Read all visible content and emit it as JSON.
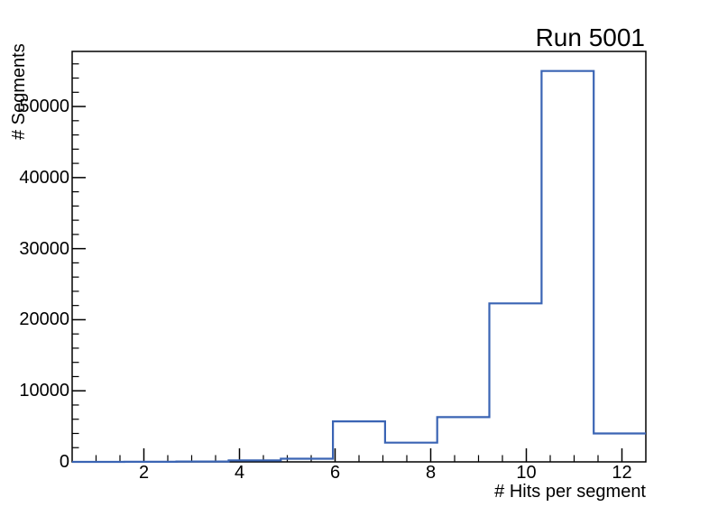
{
  "chart_data": {
    "type": "step-histogram",
    "title": "Run 5001",
    "xlabel": "# Hits per segment",
    "ylabel": "# Segments",
    "xlim": [
      0.5,
      12.5
    ],
    "ylim": [
      0,
      57750
    ],
    "grid": false,
    "legend": "none",
    "bin_edges": [
      0.5,
      1.5909,
      2.6818,
      3.7727,
      4.8636,
      5.9545,
      7.0455,
      8.1364,
      9.2273,
      10.3182,
      11.4091,
      12.5
    ],
    "values": [
      0,
      10,
      50,
      200,
      450,
      5700,
      2700,
      6300,
      22300,
      55000,
      4000
    ],
    "x_ticks": [
      {
        "v": 2,
        "label": "2"
      },
      {
        "v": 4,
        "label": "4"
      },
      {
        "v": 6,
        "label": "6"
      },
      {
        "v": 8,
        "label": "8"
      },
      {
        "v": 10,
        "label": "10"
      },
      {
        "v": 12,
        "label": "12"
      }
    ],
    "y_ticks": [
      {
        "v": 0,
        "label": "0"
      },
      {
        "v": 10000,
        "label": "10000"
      },
      {
        "v": 20000,
        "label": "20000"
      },
      {
        "v": 30000,
        "label": "30000"
      },
      {
        "v": 40000,
        "label": "40000"
      },
      {
        "v": 50000,
        "label": "50000"
      }
    ],
    "x_minor_step": 0.5,
    "y_minor_step": 2000,
    "line_color": "#3a64b4",
    "axis_color": "#000000",
    "bg_color": "#ffffff"
  }
}
